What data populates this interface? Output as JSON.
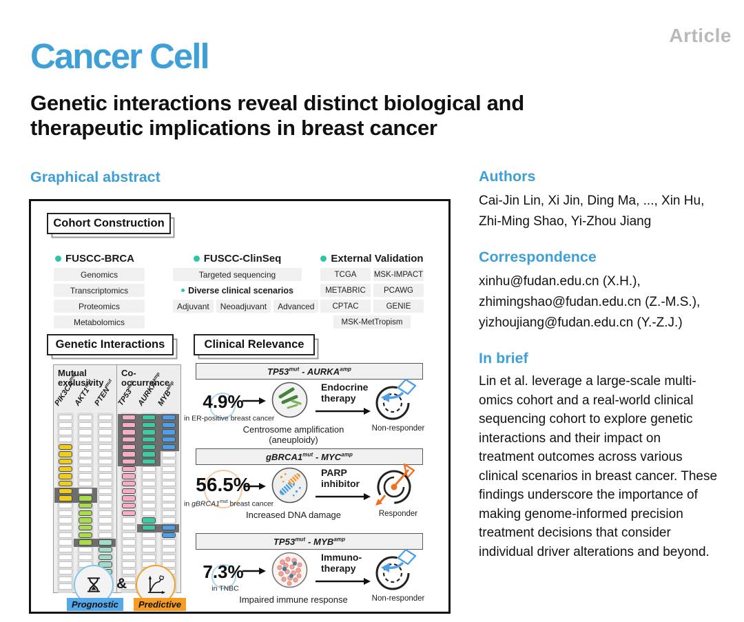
{
  "header": {
    "journal": "Cancer Cell",
    "article_tag": "Article",
    "title_lines": [
      "Genetic interactions reveal distinct biological and",
      "therapeutic implications in breast cancer"
    ]
  },
  "sidebar": {
    "authors_heading": "Authors",
    "authors_lines": [
      "Cai-Jin Lin, Xi Jin, Ding Ma, ..., Xin Hu,",
      "Zhi-Ming Shao, Yi-Zhou Jiang"
    ],
    "correspondence_heading": "Correspondence",
    "email_lines": [
      "xinhu@fudan.edu.cn (X.H.),",
      "zhimingshao@fudan.edu.cn (Z.-M.S.),",
      "yizhoujiang@fudan.edu.cn (Y.-Z.J.)"
    ],
    "inbrief_heading": "In brief",
    "inbrief_lines": [
      "Lin et al. leverage a large-scale multi-",
      "omics cohort and a real-world clinical",
      "sequencing cohort to explore genetic",
      "interactions and their impact on",
      "treatment outcomes across various",
      "clinical scenarios in breast cancer. These",
      "findings underscore the importance of",
      "making genome-informed precision",
      "treatment decisions that consider",
      "individual driver alterations and beyond."
    ]
  },
  "graphical_abstract": {
    "heading": "Graphical abstract",
    "cohort": {
      "title": "Cohort Construction",
      "brca": {
        "name": "FUSCC-BRCA",
        "items": [
          "Genomics",
          "Transcriptomics",
          "Proteomics",
          "Metabolomics"
        ]
      },
      "clinseq": {
        "name": "FUSCC-ClinSeq",
        "targeted": "Targeted sequencing",
        "diverse": "Diverse clinical scenarios",
        "scenarios": [
          "Adjuvant",
          "Neoadjuvant",
          "Advanced"
        ]
      },
      "external": {
        "name": "External Validation",
        "items": [
          "TCGA",
          "MSK-IMPACT",
          "METABRIC",
          "PCAWG",
          "CPTAC",
          "GENIE",
          "MSK-MetTropism"
        ]
      }
    },
    "genetic_interactions": {
      "title": "Genetic Interactions",
      "panels": [
        {
          "label_lines": [
            "Mutual",
            "exclusivity"
          ],
          "rows": 24,
          "columns": [
            {
              "gene": "PIK3CA",
              "sup": "mut",
              "color": "#EFCD1F",
              "blocks": [
                [
                  5,
                  12
                ]
              ]
            },
            {
              "gene": "AKT1",
              "sup": "mut",
              "color": "#A8DC4C",
              "blocks": [
                [
                  12,
                  18
                ]
              ]
            },
            {
              "gene": "PTEN",
              "sup": "mut",
              "color": "#A3DCC6",
              "blocks": [
                [
                  18,
                  24
                ]
              ]
            }
          ],
          "bands": [
            {
              "cols": [
                0,
                1
              ],
              "rows": [
                11,
                12
              ]
            },
            {
              "cols": [
                1,
                2
              ],
              "rows": [
                18,
                18
              ]
            }
          ]
        },
        {
          "label_lines": [
            "Co-",
            "occurrence"
          ],
          "rows": 24,
          "columns": [
            {
              "gene": "TP53",
              "sup": "mut",
              "color": "#F5AFC4",
              "blocks": [
                [
                  1,
                  14
                ]
              ]
            },
            {
              "gene": "AURKA",
              "sup": "amp",
              "color": "#3FCBA1",
              "blocks": [
                [
                  1,
                  7
                ],
                [
                  15,
                  16
                ]
              ]
            },
            {
              "gene": "MYB",
              "sup": "amp",
              "color": "#4E9FE8",
              "blocks": [
                [
                  1,
                  5
                ],
                [
                  16,
                  17
                ]
              ]
            }
          ],
          "bands": [
            {
              "cols": [
                0,
                1
              ],
              "rows": [
                1,
                7
              ]
            },
            {
              "cols": [
                2,
                2
              ],
              "rows": [
                1,
                5
              ]
            },
            {
              "cols": [
                1,
                2
              ],
              "rows": [
                16,
                16
              ]
            }
          ]
        }
      ],
      "legend": {
        "amp_symbol": "&",
        "prognostic": "Prognostic",
        "predictive": "Predictive"
      }
    },
    "clinical_relevance": {
      "title": "Clinical Relevance",
      "rows": [
        {
          "g1": "TP53",
          "s1": "mut",
          "sep": " - ",
          "g2": "AURKA",
          "s2": "amp",
          "percent": "4.9%",
          "sub_pre": "in ER-positive breast cancer",
          "sub_gene": "",
          "sub_sup": "",
          "sub_post": "",
          "therapy_lines": [
            "Endocrine",
            "therapy"
          ],
          "caption": "Centrosome amplification (aneuploidy)",
          "response": "Non-responder"
        },
        {
          "g1": "gBRCA1",
          "s1": "mut",
          "sep": " - ",
          "g2": "MYC",
          "s2": "amp",
          "percent": "56.5%",
          "sub_pre": "in ",
          "sub_gene": "gBRCA1",
          "sub_sup": "mut",
          "sub_post": " breast cancer",
          "therapy_lines": [
            "PARP",
            "inhibitor"
          ],
          "caption": "Increased DNA damage",
          "response": "Responder"
        },
        {
          "g1": "TP53",
          "s1": "mut",
          "sep": " - ",
          "g2": "MYB",
          "s2": "amp",
          "percent": "7.3%",
          "sub_pre": "in TNBC",
          "sub_gene": "",
          "sub_sup": "",
          "sub_post": "",
          "therapy_lines": [
            "Immuno-",
            "therapy"
          ],
          "caption": "Impaired immune response",
          "response": "Non-responder"
        }
      ]
    }
  },
  "colors": {
    "accent_blue": "#3E9FD6",
    "article_gray": "#B7B9BB",
    "teal_bullet": "#2EC4A8",
    "band_gray": "#6E6E6E",
    "prognostic_bg": "#55A9E8",
    "predictive_bg": "#F59C22",
    "responder_orange": "#F07020",
    "nonresponder_blue": "#4D9FE8"
  }
}
